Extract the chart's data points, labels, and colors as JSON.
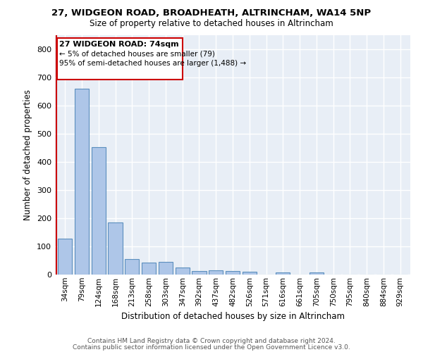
{
  "title": "27, WIDGEON ROAD, BROADHEATH, ALTRINCHAM, WA14 5NP",
  "subtitle": "Size of property relative to detached houses in Altrincham",
  "xlabel": "Distribution of detached houses by size in Altrincham",
  "ylabel": "Number of detached properties",
  "bar_color": "#aec6e8",
  "bar_edge_color": "#5b8fbe",
  "bg_color": "#e8eef6",
  "grid_color": "#ffffff",
  "annotation_text_line1": "27 WIDGEON ROAD: 74sqm",
  "annotation_text_line2": "← 5% of detached houses are smaller (79)",
  "annotation_text_line3": "95% of semi-detached houses are larger (1,488) →",
  "annotation_box_color": "#cc0000",
  "categories": [
    "34sqm",
    "79sqm",
    "124sqm",
    "168sqm",
    "213sqm",
    "258sqm",
    "303sqm",
    "347sqm",
    "392sqm",
    "437sqm",
    "482sqm",
    "526sqm",
    "571sqm",
    "616sqm",
    "661sqm",
    "705sqm",
    "750sqm",
    "795sqm",
    "840sqm",
    "884sqm",
    "929sqm"
  ],
  "values": [
    128,
    660,
    452,
    185,
    55,
    43,
    44,
    25,
    13,
    14,
    12,
    10,
    0,
    7,
    0,
    8,
    0,
    0,
    0,
    0,
    0
  ],
  "ylim": [
    0,
    850
  ],
  "yticks": [
    0,
    100,
    200,
    300,
    400,
    500,
    600,
    700,
    800
  ],
  "footer_line1": "Contains HM Land Registry data © Crown copyright and database right 2024.",
  "footer_line2": "Contains public sector information licensed under the Open Government Licence v3.0."
}
